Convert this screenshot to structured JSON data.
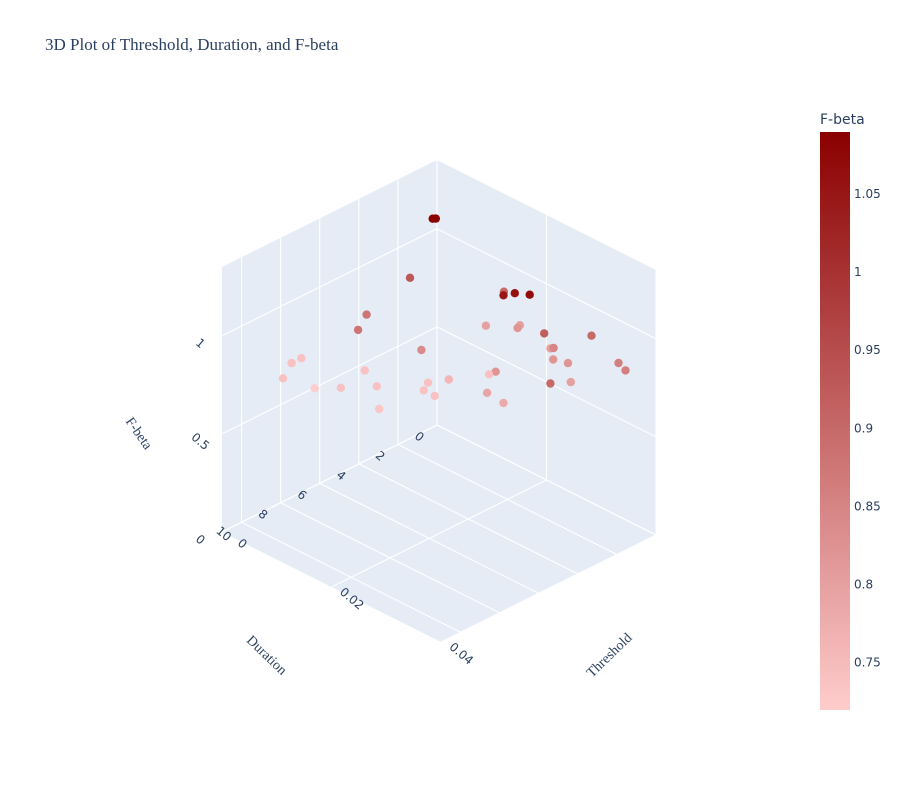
{
  "chart_data": {
    "type": "scatter",
    "title": "3D Plot of Threshold, Duration, and F-beta",
    "x_axis": {
      "label": "Threshold",
      "range": [
        0,
        0.04
      ],
      "ticks": [
        "0",
        "0.02",
        "0.04"
      ],
      "tick_values": [
        0,
        0.02,
        0.04
      ]
    },
    "y_axis": {
      "label": "Duration",
      "range": [
        0,
        11
      ],
      "ticks": [
        "0",
        "2",
        "4",
        "6",
        "8",
        "10"
      ],
      "tick_values": [
        0,
        2,
        4,
        6,
        8,
        10
      ]
    },
    "z_axis": {
      "label": "F-beta",
      "range": [
        0,
        1.35
      ],
      "ticks": [
        "0",
        "0.5",
        "1"
      ],
      "tick_values": [
        0,
        0.5,
        1
      ]
    },
    "colorbar": {
      "title": "F-beta",
      "range": [
        0.72,
        1.09
      ],
      "ticks": [
        "0.75",
        "0.8",
        "0.85",
        "0.9",
        "0.95",
        "1",
        "1.05"
      ],
      "tick_values": [
        0.75,
        0.8,
        0.85,
        0.9,
        0.95,
        1.0,
        1.05
      ],
      "colorscale": [
        "#ffcccc",
        "#8b0000"
      ]
    },
    "grid": true,
    "colors": {
      "scene_background": "#e5ecf6",
      "text": "#2a3f5f"
    },
    "points": [
      {
        "x": 0.001,
        "y": 0.5,
        "z": 1.09
      },
      {
        "x": 0.0012,
        "y": 0.4,
        "z": 1.088
      },
      {
        "x": 0.014,
        "y": 0.5,
        "z": 0.9
      },
      {
        "x": 0.018,
        "y": 0.8,
        "z": 0.8
      },
      {
        "x": 0.019,
        "y": 1.2,
        "z": 0.82
      },
      {
        "x": 0.015,
        "y": 1.7,
        "z": 0.8
      },
      {
        "x": 0.03,
        "y": 0.5,
        "z": 0.9
      },
      {
        "x": 0.004,
        "y": 2.5,
        "z": 0.93
      },
      {
        "x": 0.02,
        "y": 2.2,
        "z": 1.05
      },
      {
        "x": 0.021,
        "y": 1.9,
        "z": 1.06
      },
      {
        "x": 0.023,
        "y": 1.7,
        "z": 1.07
      },
      {
        "x": 0.025,
        "y": 1.2,
        "z": 0.8
      },
      {
        "x": 0.026,
        "y": 1.8,
        "z": 0.92
      },
      {
        "x": 0.027,
        "y": 1.6,
        "z": 0.85
      },
      {
        "x": 0.028,
        "y": 1.9,
        "z": 0.82
      },
      {
        "x": 0.03,
        "y": 1.7,
        "z": 0.82
      },
      {
        "x": 0.033,
        "y": 2.4,
        "z": 0.8
      },
      {
        "x": 0.036,
        "y": 0.8,
        "z": 0.86
      },
      {
        "x": 0.038,
        "y": 1.0,
        "z": 0.86
      },
      {
        "x": 0.035,
        "y": 4.0,
        "z": 0.9
      },
      {
        "x": 0.025,
        "y": 4.0,
        "z": 0.82
      },
      {
        "x": 0.03,
        "y": 5.0,
        "z": 0.78
      },
      {
        "x": 0.027,
        "y": 5.0,
        "z": 0.79
      },
      {
        "x": 0.02,
        "y": 5.0,
        "z": 0.76
      },
      {
        "x": 0.018,
        "y": 5.5,
        "z": 0.74
      },
      {
        "x": 0.015,
        "y": 5.0,
        "z": 0.84
      },
      {
        "x": 0.022,
        "y": 3.5,
        "z": 0.74
      },
      {
        "x": 0.005,
        "y": 5.0,
        "z": 0.88
      },
      {
        "x": 0.007,
        "y": 6.0,
        "z": 0.88
      },
      {
        "x": 0.01,
        "y": 6.5,
        "z": 0.74
      },
      {
        "x": 0.002,
        "y": 8.0,
        "z": 0.74
      },
      {
        "x": 0.002,
        "y": 7.5,
        "z": 0.74
      },
      {
        "x": 0.004,
        "y": 9.0,
        "z": 0.74
      },
      {
        "x": 0.008,
        "y": 8.5,
        "z": 0.72
      },
      {
        "x": 0.011,
        "y": 8.0,
        "z": 0.74
      },
      {
        "x": 0.014,
        "y": 7.0,
        "z": 0.74
      },
      {
        "x": 0.019,
        "y": 6.0,
        "z": 0.74
      },
      {
        "x": 0.021,
        "y": 6.0,
        "z": 0.74
      },
      {
        "x": 0.018,
        "y": 8.0,
        "z": 0.73
      }
    ]
  }
}
